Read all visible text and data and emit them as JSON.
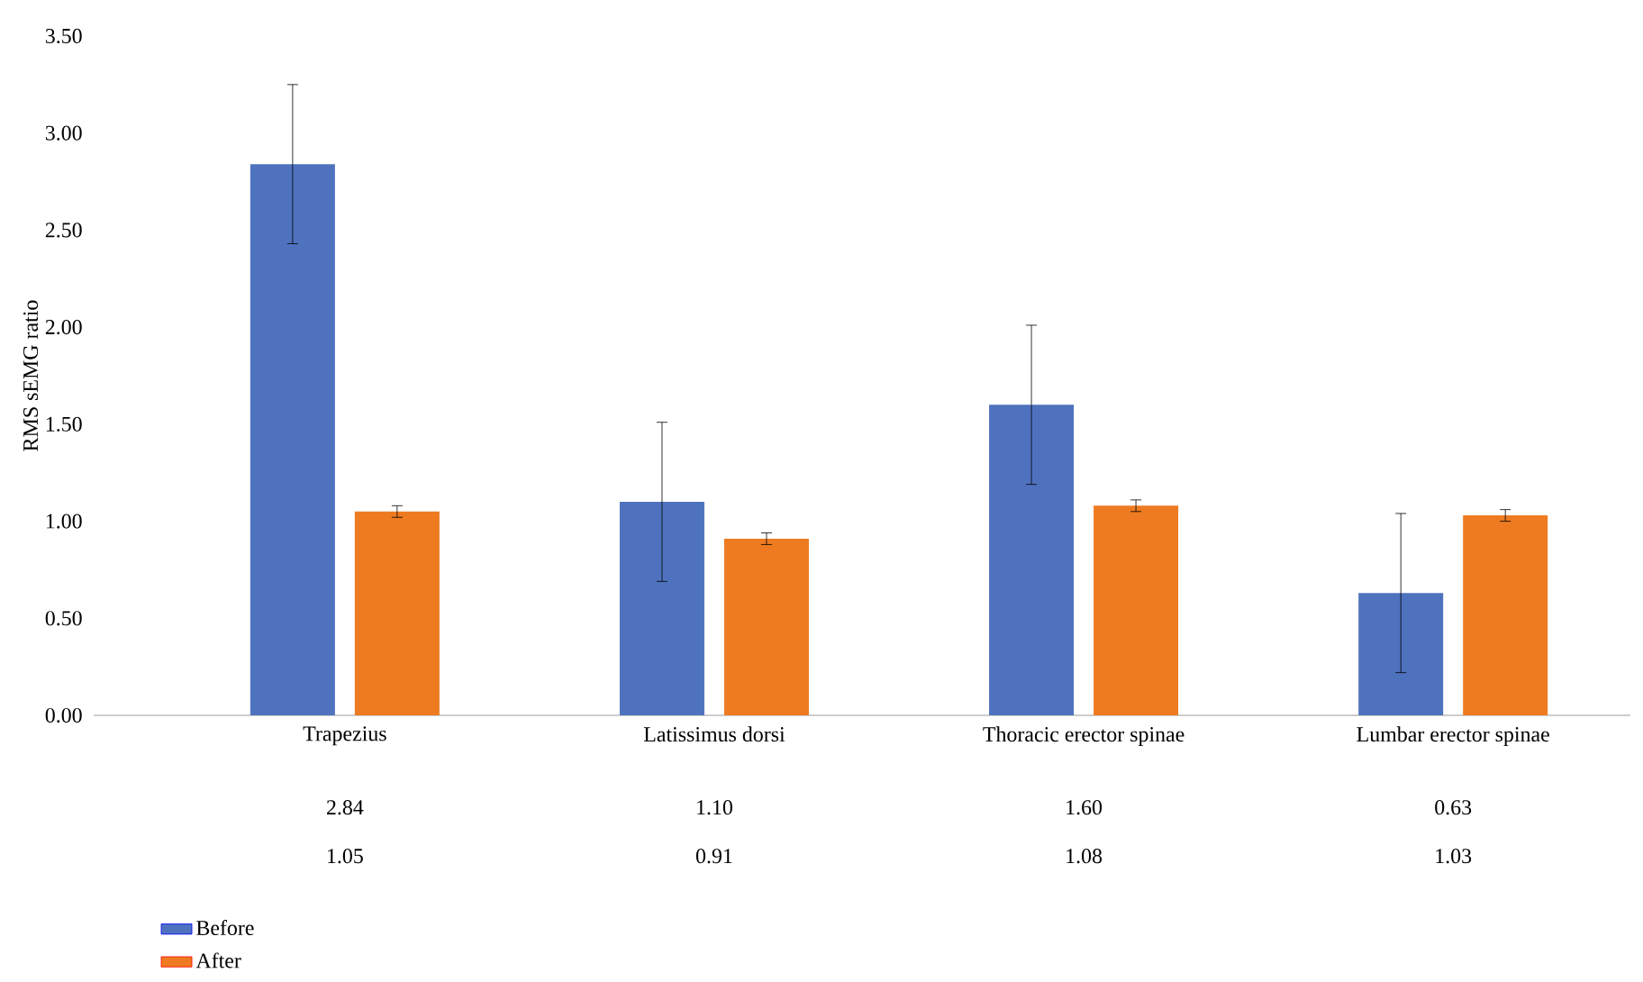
{
  "chart_data": {
    "type": "bar",
    "ylabel": "RMS sEMG ratio",
    "categories": [
      "Trapezius",
      "Latissimus dorsi",
      "Thoracic erector spinae",
      "Lumbar erector spinae"
    ],
    "series": [
      {
        "name": "Before",
        "color": "#4f72be",
        "values": [
          2.84,
          1.1,
          1.6,
          0.63
        ],
        "errors": [
          0.41,
          0.41,
          0.41,
          0.41
        ],
        "value_labels": [
          "2.84",
          "1.10",
          "1.60",
          "0.63"
        ]
      },
      {
        "name": "After",
        "color": "#ee7b21",
        "values": [
          1.05,
          0.91,
          1.08,
          1.03
        ],
        "errors": [
          0.03,
          0.03,
          0.03,
          0.03
        ],
        "value_labels": [
          "1.05",
          "0.91",
          "1.08",
          "1.03"
        ]
      }
    ],
    "ylim": [
      0,
      3.5
    ],
    "yticks": [
      {
        "value": 0,
        "label": "0.00"
      },
      {
        "value": 0.5,
        "label": "0.50"
      },
      {
        "value": 1,
        "label": "1.00"
      },
      {
        "value": 1.5,
        "label": "1.50"
      },
      {
        "value": 2,
        "label": "2.00"
      },
      {
        "value": 2.5,
        "label": "2.50"
      },
      {
        "value": 3,
        "label": "3.00"
      },
      {
        "value": 3.5,
        "label": "3.50"
      }
    ],
    "legend": "bottom left",
    "grid": false
  }
}
